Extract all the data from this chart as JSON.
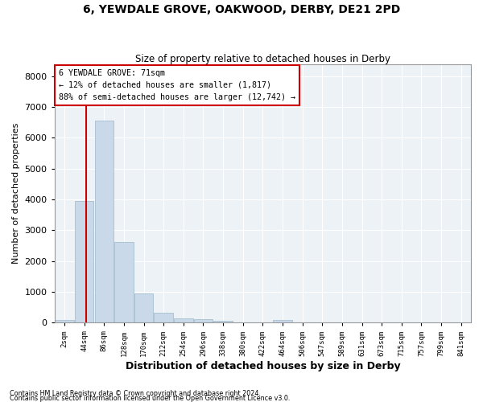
{
  "title_line1": "6, YEWDALE GROVE, OAKWOOD, DERBY, DE21 2PD",
  "title_line2": "Size of property relative to detached houses in Derby",
  "xlabel": "Distribution of detached houses by size in Derby",
  "ylabel": "Number of detached properties",
  "bar_color": "#c9d9ea",
  "bar_edge_color": "#a8bfce",
  "background_color": "#edf2f7",
  "grid_color": "#ffffff",
  "annotation_text": "6 YEWDALE GROVE: 71sqm\n← 12% of detached houses are smaller (1,817)\n88% of semi-detached houses are larger (12,742) →",
  "vline_color": "#cc0000",
  "vline_bar_index": 1,
  "footnote1": "Contains HM Land Registry data © Crown copyright and database right 2024.",
  "footnote2": "Contains public sector information licensed under the Open Government Licence v3.0.",
  "bin_labels": [
    "2sqm",
    "44sqm",
    "86sqm",
    "128sqm",
    "170sqm",
    "212sqm",
    "254sqm",
    "296sqm",
    "338sqm",
    "380sqm",
    "422sqm",
    "464sqm",
    "506sqm",
    "547sqm",
    "589sqm",
    "631sqm",
    "673sqm",
    "715sqm",
    "757sqm",
    "799sqm",
    "841sqm"
  ],
  "bar_heights": [
    80,
    3950,
    6550,
    2620,
    960,
    330,
    140,
    110,
    70,
    0,
    0,
    75,
    0,
    0,
    0,
    0,
    0,
    0,
    0,
    0,
    0
  ],
  "ylim": [
    0,
    8400
  ],
  "yticks": [
    0,
    1000,
    2000,
    3000,
    4000,
    5000,
    6000,
    7000,
    8000
  ]
}
